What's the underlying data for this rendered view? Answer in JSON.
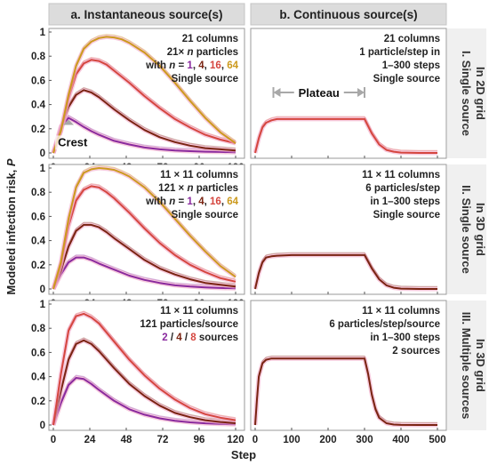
{
  "figure": {
    "column_headers": [
      "a. Instantaneous source(s)",
      "b. Continuous source(s)"
    ],
    "row_labels": [
      [
        "I. Single source",
        "In 2D grid"
      ],
      [
        "II. Single source",
        "In 3D grid"
      ],
      [
        "III. Multiple sources",
        "In 3D grid"
      ]
    ],
    "ylabel_text": "Modeled infection risk, ",
    "ylabel_var": "P",
    "xlabel": "Step"
  },
  "colors": {
    "purple": "#8a2a9e",
    "darkred": "#7a2412",
    "red": "#d5463f",
    "gold": "#cc9a1e",
    "pink_band": "#f2a8c8",
    "plateau_arrow": "#a8a8a8",
    "crest_marker": "#a8a8a8"
  },
  "chart_data": [
    {
      "id": "Ia",
      "type": "line",
      "xlim": [
        0,
        120
      ],
      "ylim": [
        0,
        1
      ],
      "xticks": [
        "0",
        "24",
        "48",
        "72",
        "96",
        "120"
      ],
      "yticks": [
        "0",
        "0.2",
        "0.4",
        "0.6",
        "0.8",
        "1"
      ],
      "annotations": [
        "21 columns",
        "21× n particles",
        "Single source"
      ],
      "legend_prefix": "with n = ",
      "legend_values": [
        "1",
        "4",
        "16",
        "64"
      ],
      "callout": "Crest",
      "series": [
        {
          "label": "1",
          "color_key": "purple",
          "x": [
            0,
            5,
            10,
            15,
            20,
            25,
            30,
            40,
            50,
            60,
            70,
            80,
            90,
            100,
            110,
            120
          ],
          "y": [
            0,
            0.22,
            0.29,
            0.255,
            0.215,
            0.18,
            0.15,
            0.1,
            0.07,
            0.045,
            0.03,
            0.02,
            0.015,
            0.01,
            0.008,
            0.005
          ]
        },
        {
          "label": "4",
          "color_key": "darkred",
          "x": [
            0,
            5,
            10,
            15,
            20,
            25,
            30,
            40,
            50,
            60,
            70,
            80,
            90,
            100,
            110,
            120
          ],
          "y": [
            0,
            0.2,
            0.38,
            0.48,
            0.52,
            0.5,
            0.46,
            0.36,
            0.27,
            0.19,
            0.13,
            0.09,
            0.06,
            0.04,
            0.03,
            0.02
          ]
        },
        {
          "label": "16",
          "color_key": "red",
          "x": [
            0,
            5,
            10,
            15,
            20,
            25,
            30,
            35,
            40,
            50,
            60,
            70,
            80,
            90,
            100,
            110,
            120
          ],
          "y": [
            0,
            0.18,
            0.45,
            0.65,
            0.74,
            0.77,
            0.76,
            0.73,
            0.68,
            0.58,
            0.47,
            0.37,
            0.28,
            0.21,
            0.15,
            0.11,
            0.08
          ]
        },
        {
          "label": "64",
          "color_key": "gold",
          "x": [
            0,
            5,
            10,
            15,
            20,
            25,
            30,
            35,
            40,
            45,
            50,
            60,
            70,
            80,
            90,
            100,
            110,
            120
          ],
          "y": [
            0,
            0.18,
            0.48,
            0.72,
            0.86,
            0.92,
            0.95,
            0.96,
            0.955,
            0.94,
            0.91,
            0.83,
            0.72,
            0.58,
            0.43,
            0.29,
            0.17,
            0.08
          ]
        }
      ]
    },
    {
      "id": "Ib",
      "type": "line",
      "xlim": [
        0,
        500
      ],
      "ylim": [
        0,
        1
      ],
      "annotations": [
        "21 columns",
        "1 particle/step in",
        "1–300 steps",
        "Single source"
      ],
      "plateau_label": "Plateau",
      "plateau_range": [
        50,
        300
      ],
      "series": [
        {
          "label": "continuous",
          "color_key": "red",
          "x": [
            0,
            10,
            20,
            30,
            45,
            60,
            100,
            150,
            200,
            250,
            300,
            320,
            340,
            360,
            380,
            400,
            450,
            500
          ],
          "y": [
            0,
            0.12,
            0.21,
            0.25,
            0.27,
            0.28,
            0.28,
            0.28,
            0.28,
            0.28,
            0.28,
            0.16,
            0.07,
            0.025,
            0.01,
            0.003,
            0,
            0
          ]
        }
      ]
    },
    {
      "id": "IIa",
      "type": "line",
      "xlim": [
        0,
        120
      ],
      "ylim": [
        0,
        1
      ],
      "xticks": [
        "0",
        "24",
        "48",
        "72",
        "96",
        "120"
      ],
      "yticks": [
        "0",
        "0.2",
        "0.4",
        "0.6",
        "0.8",
        "1"
      ],
      "annotations": [
        "11 × 11 columns",
        "121 × n particles",
        "Single source"
      ],
      "legend_prefix": "with n = ",
      "legend_values": [
        "1",
        "4",
        "16",
        "64"
      ],
      "series": [
        {
          "label": "1",
          "color_key": "purple",
          "x": [
            0,
            5,
            10,
            15,
            20,
            25,
            30,
            40,
            50,
            60,
            70,
            80,
            90,
            100,
            110,
            120
          ],
          "y": [
            0,
            0.12,
            0.22,
            0.26,
            0.26,
            0.24,
            0.21,
            0.16,
            0.11,
            0.075,
            0.05,
            0.03,
            0.02,
            0.013,
            0.008,
            0.005
          ]
        },
        {
          "label": "4",
          "color_key": "darkred",
          "x": [
            0,
            5,
            10,
            15,
            20,
            25,
            30,
            35,
            40,
            50,
            60,
            70,
            80,
            90,
            100,
            110,
            120
          ],
          "y": [
            0,
            0.15,
            0.35,
            0.48,
            0.53,
            0.53,
            0.51,
            0.47,
            0.42,
            0.33,
            0.24,
            0.17,
            0.12,
            0.08,
            0.05,
            0.035,
            0.02
          ]
        },
        {
          "label": "16",
          "color_key": "red",
          "x": [
            0,
            5,
            10,
            15,
            20,
            25,
            30,
            35,
            40,
            50,
            60,
            70,
            80,
            90,
            100,
            110,
            120
          ],
          "y": [
            0,
            0.2,
            0.52,
            0.73,
            0.82,
            0.85,
            0.84,
            0.8,
            0.75,
            0.63,
            0.5,
            0.38,
            0.28,
            0.2,
            0.14,
            0.09,
            0.06
          ]
        },
        {
          "label": "64",
          "color_key": "gold",
          "x": [
            0,
            5,
            10,
            15,
            20,
            25,
            30,
            35,
            40,
            45,
            50,
            60,
            70,
            80,
            90,
            100,
            110,
            120
          ],
          "y": [
            0,
            0.22,
            0.58,
            0.84,
            0.96,
            0.99,
            1.0,
            0.995,
            0.985,
            0.96,
            0.93,
            0.84,
            0.72,
            0.58,
            0.44,
            0.31,
            0.19,
            0.1
          ]
        }
      ]
    },
    {
      "id": "IIb",
      "type": "line",
      "xlim": [
        0,
        500
      ],
      "ylim": [
        0,
        1
      ],
      "annotations": [
        "11 × 11 columns",
        "6 particles/step",
        "in 1–300 steps",
        "Single source"
      ],
      "series": [
        {
          "label": "continuous",
          "color_key": "darkred",
          "x": [
            0,
            10,
            20,
            30,
            45,
            60,
            100,
            150,
            200,
            250,
            300,
            320,
            340,
            360,
            380,
            400,
            450,
            500
          ],
          "y": [
            0,
            0.13,
            0.22,
            0.26,
            0.27,
            0.275,
            0.28,
            0.28,
            0.28,
            0.28,
            0.28,
            0.17,
            0.08,
            0.03,
            0.01,
            0.003,
            0,
            0
          ]
        }
      ]
    },
    {
      "id": "IIIa",
      "type": "line",
      "xlim": [
        0,
        120
      ],
      "ylim": [
        0,
        1
      ],
      "xticks": [
        "0",
        "24",
        "48",
        "72",
        "96",
        "120"
      ],
      "yticks": [
        "0",
        "0.2",
        "0.4",
        "0.6",
        "0.8",
        "1"
      ],
      "annotations": [
        "11 × 11 columns",
        "121 particles/source"
      ],
      "legend_values": [
        "2",
        "4",
        "8"
      ],
      "legend_suffix": " sources",
      "series": [
        {
          "label": "2",
          "color_key": "purple",
          "x": [
            0,
            5,
            10,
            15,
            20,
            25,
            30,
            40,
            50,
            60,
            70,
            80,
            90,
            100,
            110,
            120
          ],
          "y": [
            0,
            0.18,
            0.33,
            0.39,
            0.38,
            0.34,
            0.29,
            0.2,
            0.13,
            0.085,
            0.055,
            0.035,
            0.022,
            0.014,
            0.009,
            0.006
          ]
        },
        {
          "label": "4",
          "color_key": "darkred",
          "x": [
            0,
            5,
            10,
            15,
            20,
            25,
            30,
            40,
            50,
            60,
            70,
            80,
            90,
            100,
            110,
            120
          ],
          "y": [
            0,
            0.28,
            0.54,
            0.67,
            0.7,
            0.67,
            0.61,
            0.47,
            0.34,
            0.24,
            0.16,
            0.1,
            0.065,
            0.04,
            0.025,
            0.015
          ]
        },
        {
          "label": "8",
          "color_key": "red",
          "x": [
            0,
            5,
            10,
            15,
            20,
            25,
            30,
            40,
            50,
            60,
            70,
            80,
            90,
            100,
            110,
            120
          ],
          "y": [
            0,
            0.42,
            0.78,
            0.9,
            0.92,
            0.89,
            0.84,
            0.69,
            0.54,
            0.41,
            0.3,
            0.21,
            0.14,
            0.09,
            0.06,
            0.04
          ]
        }
      ]
    },
    {
      "id": "IIIb",
      "type": "line",
      "xlim": [
        0,
        500
      ],
      "ylim": [
        0,
        1
      ],
      "xticks": [
        "0",
        "100",
        "200",
        "300",
        "400",
        "500"
      ],
      "annotations": [
        "11 × 11 columns",
        "6 particles/step/source",
        "in 1–300 steps",
        "2 sources"
      ],
      "series": [
        {
          "label": "continuous",
          "color_key": "darkred",
          "x": [
            0,
            5,
            10,
            20,
            30,
            45,
            60,
            100,
            150,
            200,
            250,
            300,
            310,
            320,
            330,
            340,
            360,
            380,
            400,
            450,
            500
          ],
          "y": [
            0,
            0.22,
            0.4,
            0.51,
            0.54,
            0.55,
            0.55,
            0.55,
            0.55,
            0.55,
            0.55,
            0.55,
            0.42,
            0.25,
            0.13,
            0.06,
            0.015,
            0.004,
            0.001,
            0,
            0
          ]
        }
      ]
    }
  ]
}
